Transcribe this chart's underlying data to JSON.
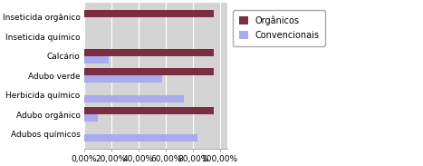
{
  "categories": [
    "Adubos químicos",
    "Adubo orgânico",
    "Herbicida químico",
    "Adubo verde",
    "Calcário",
    "Inseticida químico",
    "Inseticida orgânico"
  ],
  "organicos": [
    0.0,
    0.95,
    0.0,
    0.95,
    0.95,
    0.0,
    0.95
  ],
  "convencionais": [
    0.83,
    0.1,
    0.73,
    0.57,
    0.18,
    0.0,
    0.0
  ],
  "color_organicos": "#7B2D42",
  "color_convencionais": "#AAAAEE",
  "legend_labels": [
    "Orgânicos",
    "Convencionais"
  ],
  "xlim": [
    0,
    1.05
  ],
  "xticks": [
    0.0,
    0.2,
    0.4,
    0.6,
    0.8,
    1.0
  ],
  "xtick_labels": [
    "0,00%",
    "20,00%",
    "40,00%",
    "60,00%",
    "80,00%",
    "100,00%"
  ],
  "plot_bg_color": "#D4D4D4",
  "fig_bg_color": "#FFFFFF",
  "bar_height": 0.38,
  "fontsize": 6.5
}
